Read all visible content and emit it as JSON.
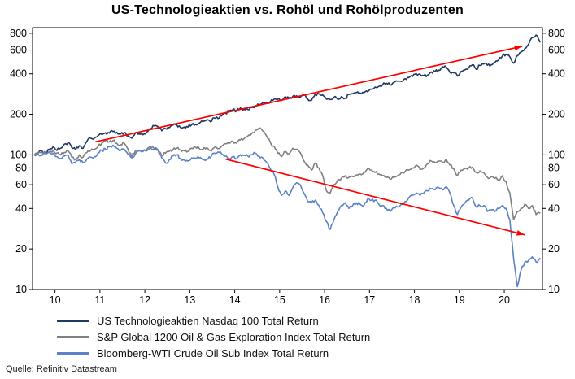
{
  "source": "Quelle: Refinitiv Datastream",
  "chart_data": {
    "type": "line",
    "title": "US-Technologieaktien vs. Rohöl und Rohölproduzenten",
    "y_scale": "log",
    "grid": false,
    "legend_position": "bottom",
    "xlim": [
      2009.5,
      2020.85
    ],
    "ylim": [
      10,
      880
    ],
    "y_ticks": [
      10,
      20,
      40,
      60,
      80,
      100,
      200,
      400,
      600,
      800
    ],
    "y_ticks_both_sides": true,
    "x_ticks": [
      2010,
      2011,
      2012,
      2013,
      2014,
      2015,
      2016,
      2017,
      2018,
      2019,
      2020
    ],
    "x_tick_labels": [
      "10",
      "11",
      "12",
      "13",
      "14",
      "15",
      "16",
      "17",
      "18",
      "19",
      "20"
    ],
    "x_start": 2009.5417,
    "x_step": 0.08333,
    "series": [
      {
        "name": "US Technologieaktien Nasdaq 100 Total Return",
        "color": "#1F3864",
        "values": [
          100,
          103,
          107,
          104,
          110,
          115,
          108,
          112,
          120,
          123,
          113,
          109,
          117,
          112,
          126,
          133,
          133,
          139,
          142,
          146,
          145,
          149,
          147,
          143,
          147,
          138,
          133,
          146,
          143,
          141,
          148,
          157,
          164,
          162,
          151,
          157,
          159,
          166,
          168,
          160,
          161,
          161,
          167,
          168,
          172,
          176,
          182,
          176,
          188,
          186,
          195,
          204,
          211,
          216,
          212,
          223,
          218,
          217,
          224,
          232,
          234,
          244,
          242,
          248,
          259,
          258,
          253,
          271,
          264,
          271,
          275,
          267,
          278,
          260,
          254,
          282,
          284,
          279,
          259,
          257,
          268,
          259,
          271,
          263,
          281,
          284,
          290,
          288,
          289,
          294,
          307,
          319,
          323,
          332,
          341,
          332,
          345,
          352,
          351,
          368,
          375,
          382,
          401,
          399,
          388,
          391,
          413,
          415,
          426,
          452,
          449,
          409,
          407,
          385,
          417,
          428,
          444,
          466,
          432,
          462,
          472,
          463,
          466,
          486,
          506,
          542,
          558,
          535,
          480,
          545,
          580,
          615,
          660,
          745,
          775,
          690
        ]
      },
      {
        "name": "S&P Global 1200 Oil & Gas Exploration Index Total Return",
        "color": "#7F7F7F",
        "values": [
          100,
          102,
          105,
          103,
          106,
          108,
          103,
          100,
          104,
          107,
          96,
          93,
          100,
          96,
          104,
          108,
          110,
          116,
          122,
          127,
          125,
          128,
          122,
          119,
          122,
          110,
          97,
          108,
          108,
          106,
          110,
          115,
          111,
          109,
          98,
          103,
          106,
          109,
          112,
          109,
          107,
          106,
          112,
          114,
          112,
          110,
          113,
          108,
          113,
          111,
          116,
          121,
          122,
          126,
          122,
          129,
          132,
          138,
          144,
          152,
          158,
          150,
          138,
          124,
          116,
          103,
          97,
          106,
          102,
          112,
          110,
          104,
          90,
          84,
          77,
          87,
          80,
          70,
          54,
          52,
          60,
          65,
          67,
          70,
          68,
          69,
          71,
          72,
          74,
          79,
          77,
          74,
          72,
          70,
          68,
          66,
          68,
          70,
          74,
          75,
          77,
          80,
          84,
          78,
          80,
          86,
          90,
          88,
          90,
          88,
          93,
          84,
          79,
          70,
          77,
          79,
          80,
          81,
          74,
          76,
          74,
          68,
          69,
          67,
          65,
          70,
          63,
          52,
          33,
          38,
          40,
          43,
          40,
          42,
          36,
          37
        ]
      },
      {
        "name": "Bloomberg-WTI Crude Oil Sub Index Total Return",
        "color": "#5B82C8",
        "values": [
          100,
          101,
          99,
          102,
          104,
          103,
          97,
          94,
          98,
          100,
          86,
          88,
          92,
          87,
          93,
          96,
          97,
          103,
          108,
          110,
          115,
          118,
          112,
          108,
          110,
          101,
          95,
          102,
          107,
          106,
          107,
          112,
          110,
          109,
          95,
          87,
          92,
          98,
          100,
          94,
          92,
          90,
          95,
          94,
          95,
          92,
          93,
          95,
          103,
          105,
          102,
          98,
          94,
          97,
          94,
          100,
          99,
          98,
          100,
          103,
          98,
          95,
          88,
          79,
          72,
          58,
          50,
          54,
          50,
          57,
          62,
          60,
          52,
          45,
          44,
          46,
          42,
          37,
          32,
          28,
          33,
          38,
          42,
          44,
          40,
          42,
          44,
          43,
          42,
          47,
          46,
          46,
          43,
          42,
          40,
          38,
          41,
          41,
          43,
          45,
          48,
          50,
          52,
          50,
          52,
          54,
          56,
          55,
          57,
          55,
          58,
          52,
          42,
          36,
          41,
          44,
          46,
          48,
          41,
          42,
          42,
          38,
          39,
          38,
          40,
          42,
          40,
          33,
          17,
          10.5,
          14,
          16,
          16.5,
          17.5,
          16,
          17
        ]
      }
    ],
    "trend_arrows": [
      {
        "from": [
          2010.9,
          125
        ],
        "to": [
          2020.4,
          640
        ],
        "color": "#FF0000"
      },
      {
        "from": [
          2013.8,
          93
        ],
        "to": [
          2020.45,
          25.5
        ],
        "color": "#FF0000"
      }
    ]
  }
}
